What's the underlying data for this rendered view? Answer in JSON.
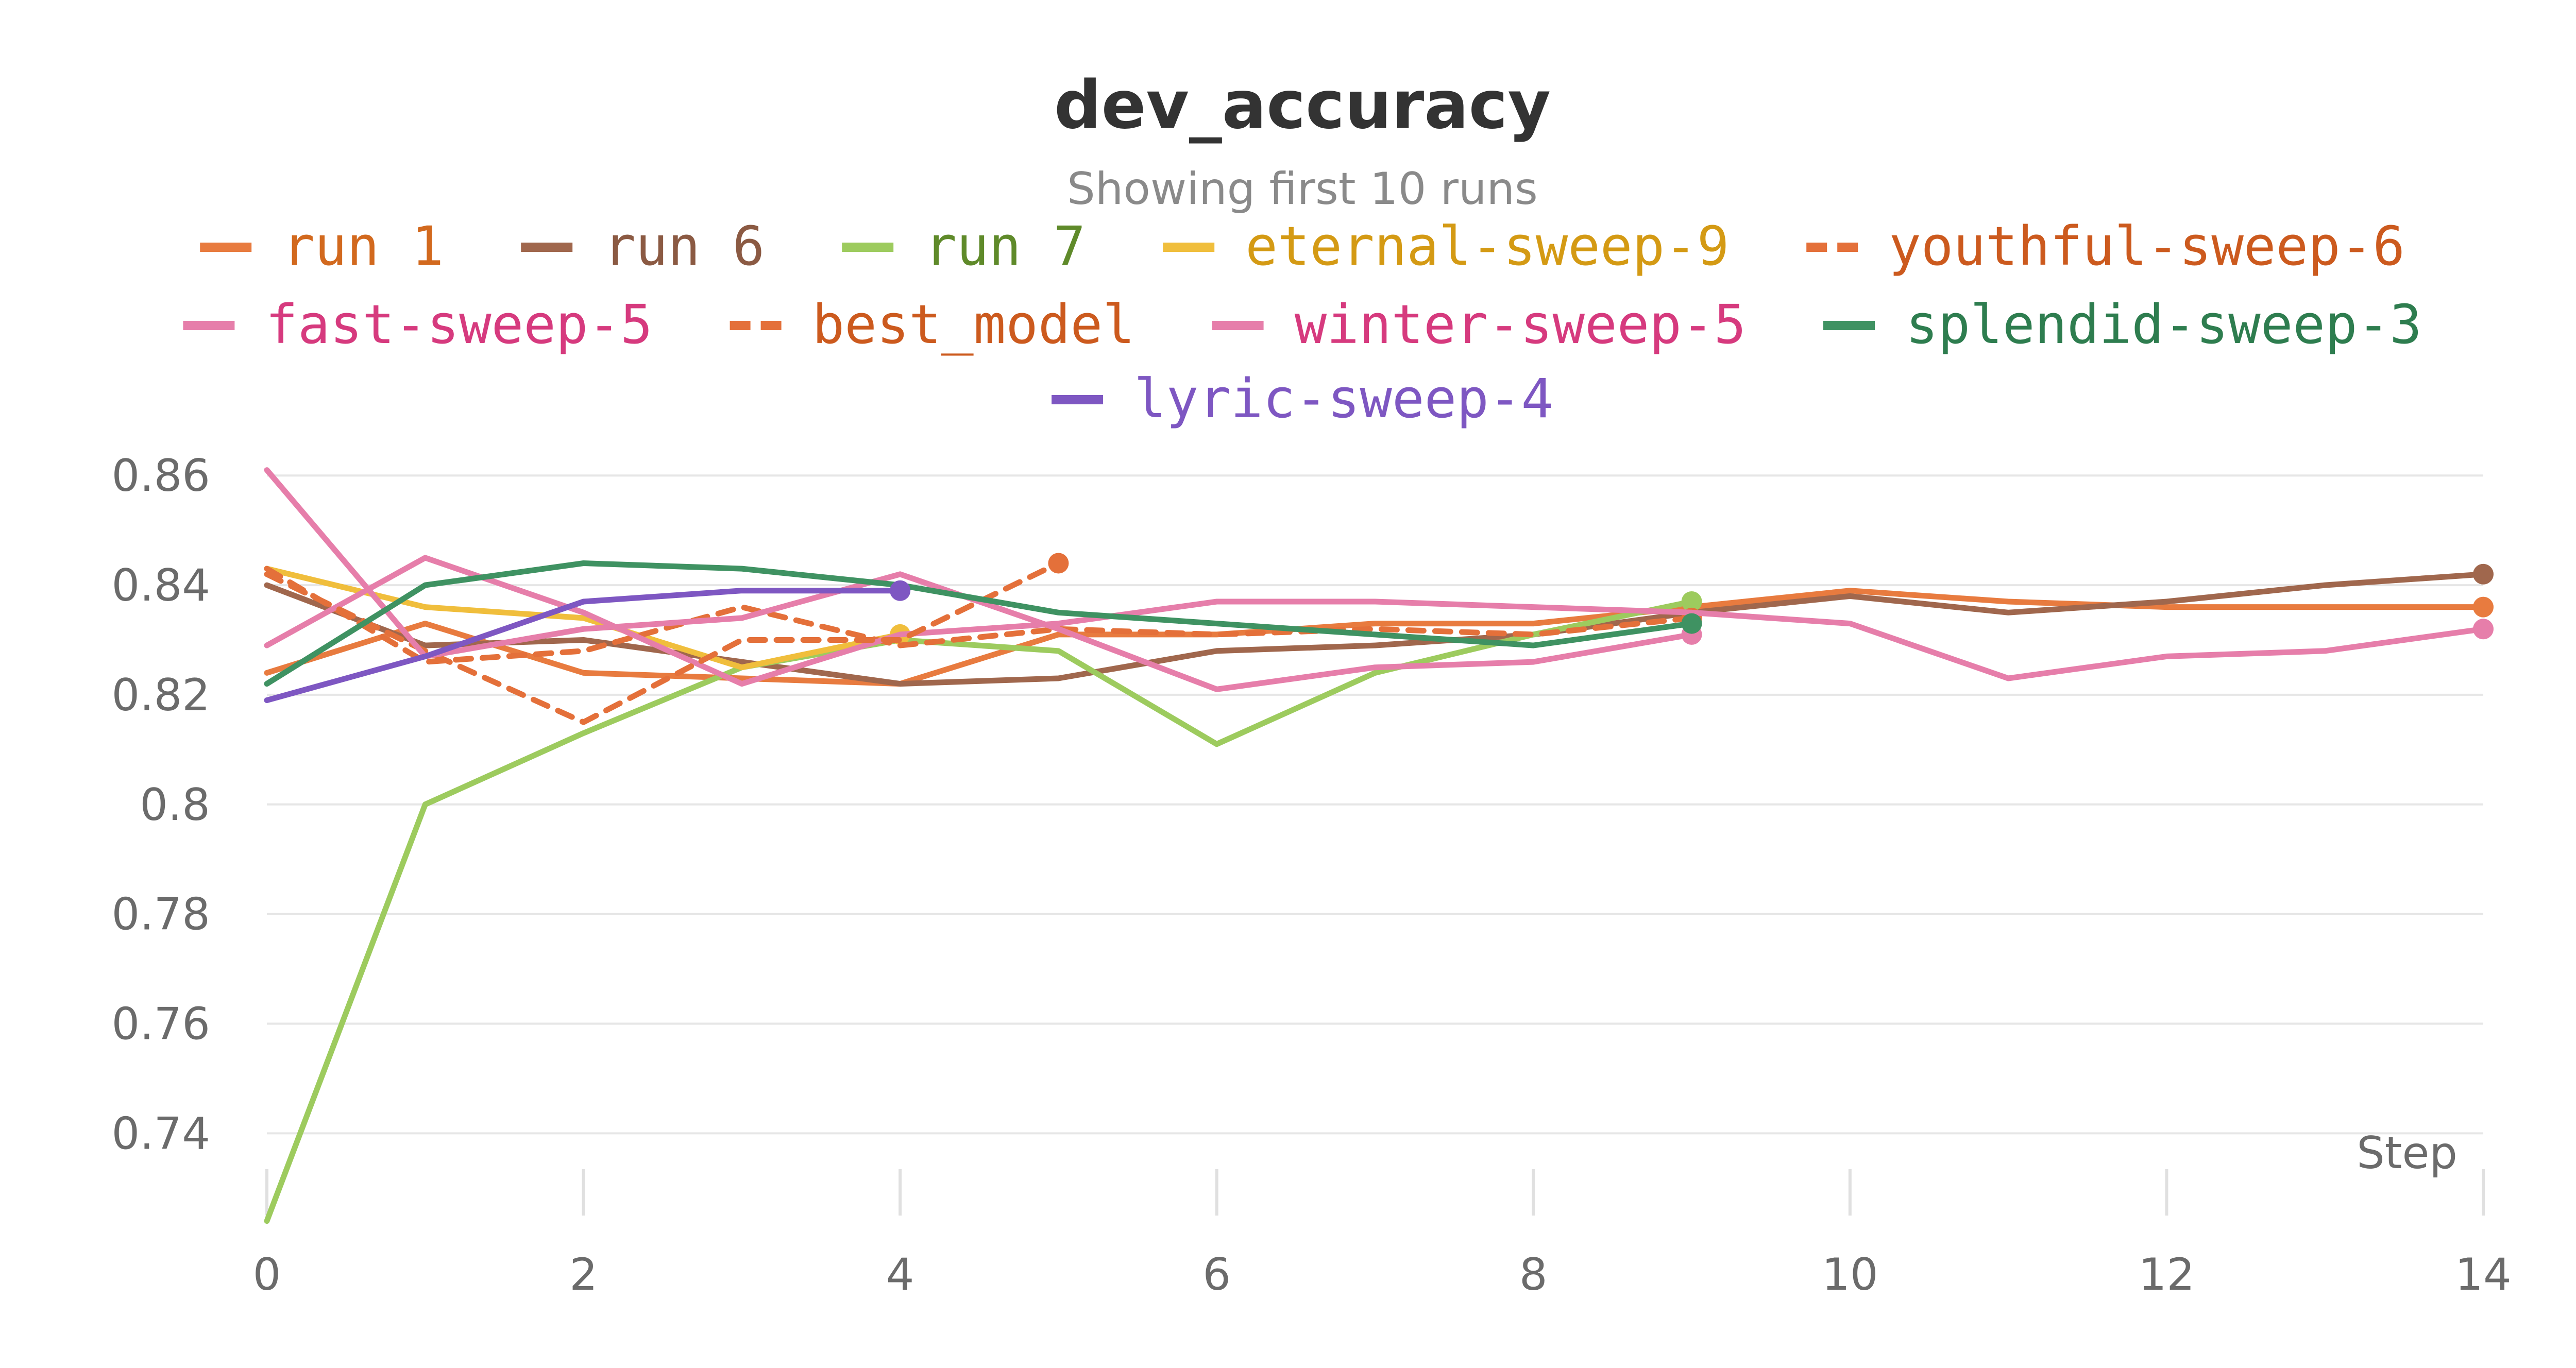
{
  "chart_data": {
    "type": "line",
    "title": "dev_accuracy",
    "subtitle": "Showing first 10 runs",
    "xlabel": "Step",
    "ylabel": "",
    "xlim": [
      0,
      14
    ],
    "ylim": [
      0.725,
      0.865
    ],
    "x_ticks": [
      0,
      2,
      4,
      6,
      8,
      10,
      12,
      14
    ],
    "y_ticks": [
      0.74,
      0.76,
      0.78,
      0.8,
      0.82,
      0.84,
      0.86
    ],
    "y_tick_labels": [
      "0.74",
      "0.76",
      "0.78",
      "0.8",
      "0.82",
      "0.84",
      "0.86"
    ],
    "grid": "horizontal",
    "legend_position": "top",
    "series": [
      {
        "name": "run 1",
        "color": "#E87B3F",
        "text_color": "#D2691E",
        "dash": false,
        "x": [
          0,
          1,
          2,
          3,
          4,
          5,
          6,
          7,
          8,
          9,
          10,
          11,
          12,
          13,
          14
        ],
        "y": [
          0.824,
          0.833,
          0.824,
          0.823,
          0.822,
          0.831,
          0.831,
          0.833,
          0.833,
          0.836,
          0.839,
          0.837,
          0.836,
          0.836,
          0.836
        ]
      },
      {
        "name": "run 6",
        "color": "#A0674D",
        "text_color": "#8B5A43",
        "dash": false,
        "x": [
          0,
          1,
          2,
          3,
          4,
          5,
          6,
          7,
          8,
          9,
          10,
          11,
          12,
          13,
          14
        ],
        "y": [
          0.84,
          0.829,
          0.83,
          0.826,
          0.822,
          0.823,
          0.828,
          0.829,
          0.831,
          0.835,
          0.838,
          0.835,
          0.837,
          0.84,
          0.842
        ]
      },
      {
        "name": "run 7",
        "color": "#9DCB5E",
        "text_color": "#5F8A2A",
        "dash": false,
        "x": [
          0,
          1,
          2,
          3,
          4,
          5,
          6,
          7,
          8,
          9
        ],
        "y": [
          0.724,
          0.8,
          0.813,
          0.825,
          0.83,
          0.828,
          0.811,
          0.824,
          0.831,
          0.837
        ]
      },
      {
        "name": "eternal-sweep-9",
        "color": "#F0BE3C",
        "text_color": "#D49A14",
        "dash": false,
        "x": [
          0,
          1,
          2,
          3,
          4
        ],
        "y": [
          0.843,
          0.836,
          0.834,
          0.825,
          0.831
        ]
      },
      {
        "name": "youthful-sweep-6",
        "color": "#E4703A",
        "text_color": "#CC5A1E",
        "dash": true,
        "x": [
          0,
          1,
          2,
          3,
          4,
          5,
          6,
          7,
          8,
          9
        ],
        "y": [
          0.843,
          0.826,
          0.828,
          0.836,
          0.829,
          0.832,
          0.831,
          0.832,
          0.831,
          0.834
        ]
      },
      {
        "name": "fast-sweep-5",
        "color": "#E67EAA",
        "text_color": "#D63A7E",
        "dash": false,
        "x": [
          0,
          1,
          2,
          3,
          4,
          5,
          6,
          7,
          8,
          9,
          10,
          11,
          12,
          13,
          14
        ],
        "y": [
          0.829,
          0.845,
          0.835,
          0.822,
          0.831,
          0.833,
          0.837,
          0.837,
          0.836,
          0.835,
          0.833,
          0.823,
          0.827,
          0.828,
          0.832
        ]
      },
      {
        "name": "best_model",
        "color": "#E4703A",
        "text_color": "#CC5A1E",
        "dash": true,
        "x": [
          0,
          1,
          2,
          3,
          4,
          5
        ],
        "y": [
          0.842,
          0.828,
          0.815,
          0.83,
          0.83,
          0.844
        ]
      },
      {
        "name": "winter-sweep-5",
        "color": "#E67EAA",
        "text_color": "#D63A7E",
        "dash": false,
        "x": [
          0,
          1,
          2,
          3,
          4,
          5,
          6,
          7,
          8,
          9
        ],
        "y": [
          0.861,
          0.827,
          0.832,
          0.834,
          0.842,
          0.832,
          0.821,
          0.825,
          0.826,
          0.831
        ]
      },
      {
        "name": "splendid-sweep-3",
        "color": "#3F9262",
        "text_color": "#2E7D4F",
        "dash": false,
        "x": [
          0,
          1,
          2,
          3,
          4,
          5,
          6,
          7,
          8,
          9
        ],
        "y": [
          0.822,
          0.84,
          0.844,
          0.843,
          0.84,
          0.835,
          0.833,
          0.831,
          0.829,
          0.833
        ]
      },
      {
        "name": "lyric-sweep-4",
        "color": "#7E57C2",
        "text_color": "#7E57C2",
        "dash": false,
        "x": [
          0,
          1,
          2,
          3,
          4
        ],
        "y": [
          0.819,
          0.827,
          0.837,
          0.839,
          0.839
        ]
      }
    ]
  }
}
